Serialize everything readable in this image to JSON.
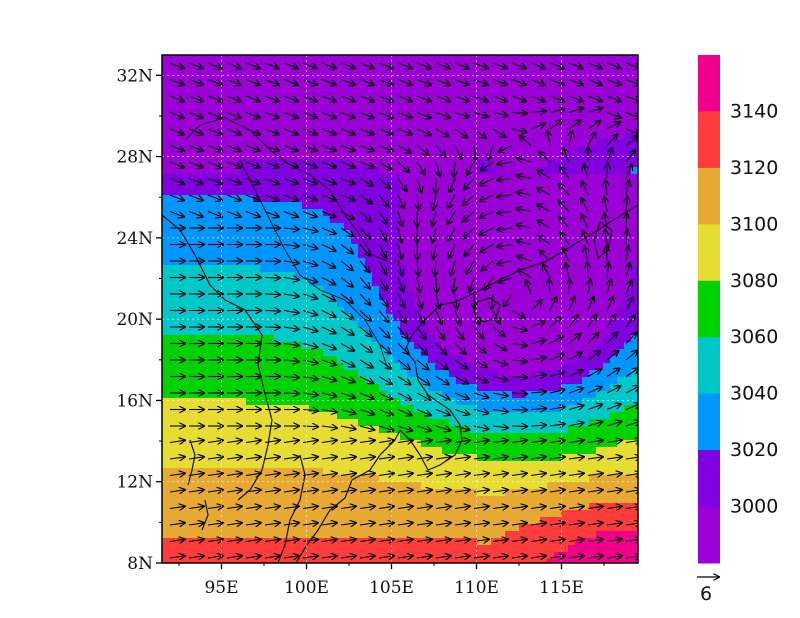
{
  "colors": {
    "band_3000_below": "#9b00d6",
    "band_3000": "#8000e0",
    "band_3020": "#0096ff",
    "band_3040": "#00c8c8",
    "band_3060": "#00d200",
    "band_3080": "#e6dc32",
    "band_3100": "#e6aa32",
    "band_3120": "#ff3c3c",
    "band_3140": "#f0008c",
    "coast": "#111111",
    "arrow": "#000000"
  },
  "map": {
    "lon_range": [
      91.5,
      119.5
    ],
    "lat_range": [
      8,
      33
    ],
    "lon_ticks": [
      {
        "value": 95,
        "label": "95E"
      },
      {
        "value": 100,
        "label": "100E"
      },
      {
        "value": 105,
        "label": "105E"
      },
      {
        "value": 110,
        "label": "110E"
      },
      {
        "value": 115,
        "label": "115E"
      }
    ],
    "lat_ticks": [
      {
        "value": 8,
        "label": "8N"
      },
      {
        "value": 12,
        "label": "12N"
      },
      {
        "value": 16,
        "label": "16N"
      },
      {
        "value": 20,
        "label": "20N"
      },
      {
        "value": 24,
        "label": "24N"
      },
      {
        "value": 28,
        "label": "28N"
      },
      {
        "value": 32,
        "label": "32N"
      }
    ],
    "cyclone_center": {
      "lon": 112.5,
      "lat": 21
    },
    "geopotential_min": 2990,
    "geopotential_max": 3150
  },
  "colorbar": {
    "levels": [
      {
        "value": 3140,
        "label": "3140"
      },
      {
        "value": 3120,
        "label": "3120"
      },
      {
        "value": 3100,
        "label": "3100"
      },
      {
        "value": 3080,
        "label": "3080"
      },
      {
        "value": 3060,
        "label": "3060"
      },
      {
        "value": 3040,
        "label": "3040"
      },
      {
        "value": 3020,
        "label": "3020"
      },
      {
        "value": 3000,
        "label": "3000"
      }
    ]
  },
  "reference_vector": {
    "label": "6",
    "magnitude": 6
  }
}
